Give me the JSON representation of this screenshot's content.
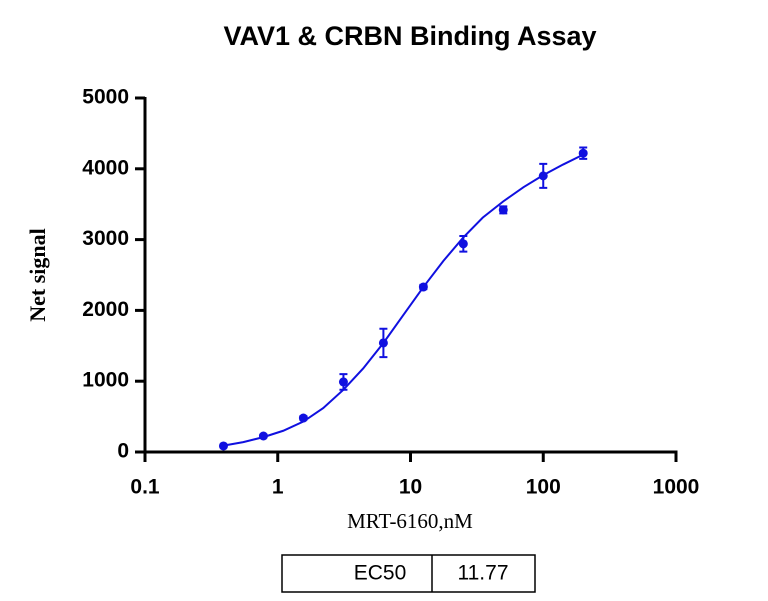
{
  "chart_data": {
    "type": "scatter",
    "title": "VAV1 & CRBN Binding  Assay",
    "x_label": "MRT-6160,nM",
    "y_label": "Net signal",
    "log_x": true,
    "xlim": [
      0.1,
      1000
    ],
    "xticks": [
      0.1,
      1,
      10,
      100,
      1000
    ],
    "ylim": [
      0,
      5000
    ],
    "yticks": [
      0,
      1000,
      2000,
      3000,
      4000,
      5000
    ],
    "series": [
      {
        "name": "Net signal",
        "color": "#1010e0",
        "x": [
          0.39,
          0.78,
          1.56,
          3.125,
          6.25,
          12.5,
          25,
          50,
          100,
          200
        ],
        "values": [
          85,
          226,
          480,
          990,
          1540,
          2330,
          2940,
          3420,
          3900,
          4220
        ],
        "errors": [
          20,
          20,
          25,
          110,
          200,
          30,
          110,
          50,
          170,
          80
        ]
      },
      {
        "name": "Fit",
        "type": "line",
        "color": "#1010e0",
        "x": [
          0.39,
          0.55,
          0.78,
          1.1,
          1.56,
          2.2,
          3.125,
          4.4,
          6.25,
          8.8,
          12.5,
          17.7,
          25,
          35,
          50,
          71,
          100,
          141,
          200
        ],
        "values": [
          90,
          140,
          210,
          300,
          430,
          620,
          880,
          1180,
          1540,
          1930,
          2330,
          2700,
          3030,
          3310,
          3540,
          3740,
          3910,
          4060,
          4200
        ]
      }
    ],
    "table": [
      [
        "EC50",
        "11.77"
      ]
    ]
  }
}
